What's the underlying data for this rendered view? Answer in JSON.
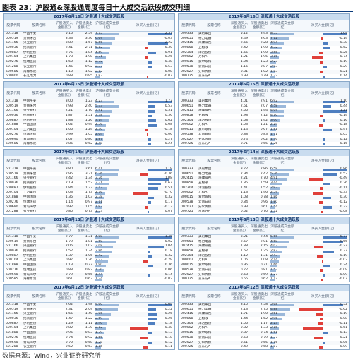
{
  "figure": {
    "title": "图表 23：沪股通&深股通周度每日十大成交活跃股成交明细",
    "source": "数据来源：Wind，兴业证券研究所"
  },
  "headers": {
    "sh": [
      "股票代码",
      "股票名称",
      "沪股通买入金额(亿)",
      "沪股通卖出金额(亿)",
      "沪股通成交金额(亿)",
      "净买入金额(亿)"
    ],
    "sz": [
      "股票代码",
      "股票名称",
      "深股通买入金额(亿)",
      "深股通卖出金额(亿)",
      "深股通成交金额(亿)",
      "净买入金额(亿)"
    ]
  },
  "panels": [
    {
      "title": "2017年6月16日 沪股通十大成交活跃股",
      "rows": [
        [
          "601318",
          "中国平安",
          "5.16",
          "2.59",
          "7.75",
          "2.57"
        ],
        [
          "600519",
          "贵州茅台",
          "3.33",
          "3.36",
          "6.69",
          "-0.03"
        ],
        [
          "601166",
          "兴业银行",
          "3.89",
          "1.67",
          "5.56",
          "2.22"
        ],
        [
          "600036",
          "招商银行",
          "2.41",
          "2.71",
          "5.12",
          "-0.30"
        ],
        [
          "600887",
          "伊利股份",
          "2.75",
          "1.84",
          "4.59",
          "0.91"
        ],
        [
          "600104",
          "上汽集团",
          "1.73",
          "1.98",
          "3.71",
          "-0.25"
        ],
        [
          "600276",
          "恒瑞医药",
          "1.60",
          "1.12",
          "2.72",
          "0.48"
        ],
        [
          "601288",
          "农业银行",
          "1.45",
          "0.92",
          "2.37",
          "0.53"
        ],
        [
          "600585",
          "海螺水泥",
          "1.10",
          "1.02",
          "2.12",
          "0.08"
        ],
        [
          "600900",
          "长江电力",
          "0.88",
          "0.95",
          "1.83",
          "-0.07"
        ]
      ]
    },
    {
      "title": "2017年6月16日 深股通十大成交活跃股",
      "rows": [
        [
          "000333",
          "美的集团",
          "5.12",
          "3.43",
          "8.55",
          "1.69"
        ],
        [
          "000651",
          "格力电器",
          "3.49",
          "3.63",
          "7.12",
          "-0.14"
        ],
        [
          "002415",
          "海康威视",
          "2.66",
          "2.28",
          "4.94",
          "0.38"
        ],
        [
          "000858",
          "五粮液",
          "2.42",
          "1.90",
          "4.32",
          "0.52"
        ],
        [
          "002304",
          "洋河股份",
          "1.65",
          "1.90",
          "3.55",
          "-0.25"
        ],
        [
          "000002",
          "万科A",
          "1.21",
          "1.95",
          "3.16",
          "-0.74"
        ],
        [
          "300015",
          "爱尔眼科",
          "1.04",
          "1.23",
          "2.27",
          "-0.19"
        ],
        [
          "000538",
          "云南白药",
          "1.16",
          "0.87",
          "2.03",
          "0.29"
        ],
        [
          "002027",
          "分众传媒",
          "0.81",
          "1.02",
          "1.83",
          "-0.21"
        ],
        [
          "000725",
          "京东方A",
          "0.93",
          "0.79",
          "1.72",
          "0.14"
        ]
      ]
    },
    {
      "title": "2017年6月15日 沪股通十大成交活跃股",
      "rows": [
        [
          "601318",
          "中国平安",
          "3.00",
          "1.23",
          "4.23",
          "1.77"
        ],
        [
          "600519",
          "贵州茅台",
          "2.93",
          "2.40",
          "5.33",
          "0.53"
        ],
        [
          "601166",
          "兴业银行",
          "2.21",
          "1.70",
          "3.91",
          "0.51"
        ],
        [
          "600036",
          "招商银行",
          "1.87",
          "1.51",
          "3.38",
          "0.36"
        ],
        [
          "600887",
          "伊利股份",
          "1.88",
          "1.26",
          "3.14",
          "0.62"
        ],
        [
          "601888",
          "中国国旅",
          "1.62",
          "0.94",
          "2.56",
          "0.68"
        ],
        [
          "600104",
          "上汽集团",
          "1.06",
          "1.24",
          "2.30",
          "-0.18"
        ],
        [
          "600276",
          "恒瑞医药",
          "0.99",
          "1.05",
          "2.04",
          "-0.06"
        ],
        [
          "600690",
          "青岛海尔",
          "1.07",
          "0.80",
          "1.87",
          "0.27"
        ],
        [
          "600585",
          "海螺水泥",
          "0.86",
          "0.62",
          "1.48",
          "0.24"
        ]
      ]
    },
    {
      "title": "2017年6月15日 深股通十大成交活跃股",
      "rows": [
        [
          "000333",
          "美的集团",
          "4.01",
          "2.91",
          "6.92",
          "1.10"
        ],
        [
          "000651",
          "格力电器",
          "2.51",
          "2.07",
          "4.58",
          "0.44"
        ],
        [
          "002415",
          "海康威视",
          "2.65",
          "1.44",
          "4.09",
          "1.21"
        ],
        [
          "000858",
          "五粮液",
          "1.98",
          "2.12",
          "4.10",
          "-0.14"
        ],
        [
          "002304",
          "洋河股份",
          "1.58",
          "1.42",
          "3.00",
          "0.16"
        ],
        [
          "000002",
          "万科A",
          "1.03",
          "1.21",
          "2.24",
          "-0.18"
        ],
        [
          "300015",
          "爱尔眼科",
          "1.14",
          "0.67",
          "1.81",
          "0.47"
        ],
        [
          "000538",
          "云南白药",
          "0.88",
          "0.83",
          "1.71",
          "0.05"
        ],
        [
          "002027",
          "分众传媒",
          "0.74",
          "0.62",
          "1.36",
          "0.12"
        ],
        [
          "000725",
          "京东方A",
          "0.71",
          "0.55",
          "1.26",
          "0.16"
        ]
      ]
    },
    {
      "title": "2017年6月14日 沪股通十大成交活跃股",
      "rows": [
        [
          "601318",
          "中国平安",
          "3.80",
          "2.61",
          "6.41",
          "1.19"
        ],
        [
          "600519",
          "贵州茅台",
          "2.95",
          "3.31",
          "6.26",
          "-0.36"
        ],
        [
          "601166",
          "兴业银行",
          "2.42",
          "1.34",
          "3.76",
          "1.08"
        ],
        [
          "600036",
          "招商银行",
          "2.19",
          "1.52",
          "3.71",
          "0.67"
        ],
        [
          "600887",
          "伊利股份",
          "1.84",
          "1.33",
          "3.17",
          "0.51"
        ],
        [
          "600104",
          "上汽集团",
          "1.03",
          "1.73",
          "2.76",
          "-0.70"
        ],
        [
          "601888",
          "中国国旅",
          "1.35",
          "1.03",
          "2.38",
          "0.32"
        ],
        [
          "600276",
          "恒瑞医药",
          "1.14",
          "0.97",
          "2.11",
          "0.17"
        ],
        [
          "600690",
          "青岛海尔",
          "0.92",
          "1.05",
          "1.97",
          "-0.13"
        ],
        [
          "601288",
          "农业银行",
          "0.80",
          "0.73",
          "1.53",
          "0.07"
        ]
      ]
    },
    {
      "title": "2017年6月14日 深股通十大成交活跃股",
      "rows": [
        [
          "000333",
          "美的集团",
          "3.72",
          "2.86",
          "6.58",
          "0.86"
        ],
        [
          "000651",
          "格力电器",
          "2.94",
          "2.42",
          "5.36",
          "0.52"
        ],
        [
          "002415",
          "海康威视",
          "2.21",
          "2.70",
          "4.91",
          "-0.49"
        ],
        [
          "000858",
          "五粮液",
          "1.85",
          "1.59",
          "3.44",
          "0.26"
        ],
        [
          "002304",
          "洋河股份",
          "1.41",
          "1.52",
          "2.93",
          "-0.11"
        ],
        [
          "000002",
          "万科A",
          "1.13",
          "1.46",
          "2.59",
          "-0.33"
        ],
        [
          "300015",
          "爱尔眼科",
          "1.08",
          "0.78",
          "1.86",
          "0.30"
        ],
        [
          "000538",
          "云南白药",
          "0.84",
          "0.96",
          "1.80",
          "-0.12"
        ],
        [
          "002027",
          "分众传媒",
          "0.93",
          "0.61",
          "1.54",
          "0.32"
        ],
        [
          "000725",
          "京东方A",
          "0.62",
          "0.70",
          "1.32",
          "-0.08"
        ]
      ]
    },
    {
      "title": "2017年6月13日 沪股通十大成交活跃股",
      "rows": [
        [
          "601318",
          "中国平安",
          "2.77",
          "1.31",
          "4.08",
          "1.46"
        ],
        [
          "600519",
          "贵州茅台",
          "1.79",
          "1.81",
          "3.60",
          "-0.02"
        ],
        [
          "601166",
          "兴业银行",
          "2.06",
          "1.02",
          "3.08",
          "1.04"
        ],
        [
          "600036",
          "招商银行",
          "1.52",
          "1.34",
          "2.86",
          "0.18"
        ],
        [
          "600887",
          "伊利股份",
          "1.37",
          "1.05",
          "2.42",
          "0.32"
        ],
        [
          "600104",
          "上汽集团",
          "0.97",
          "1.26",
          "2.23",
          "-0.29"
        ],
        [
          "601888",
          "中国国旅",
          "1.13",
          "0.77",
          "1.90",
          "0.36"
        ],
        [
          "600276",
          "恒瑞医药",
          "0.88",
          "0.82",
          "1.70",
          "0.06"
        ],
        [
          "600690",
          "青岛海尔",
          "0.79",
          "0.65",
          "1.44",
          "0.14"
        ],
        [
          "600585",
          "海螺水泥",
          "0.61",
          "0.63",
          "1.24",
          "-0.02"
        ]
      ]
    },
    {
      "title": "2017年6月13日 深股通十大成交活跃股",
      "rows": [
        [
          "000333",
          "美的集团",
          "3.21",
          "2.44",
          "5.65",
          "0.77"
        ],
        [
          "000651",
          "格力电器",
          "2.67",
          "2.01",
          "4.68",
          "0.66"
        ],
        [
          "002415",
          "海康威视",
          "1.88",
          "2.15",
          "4.03",
          "-0.27"
        ],
        [
          "000858",
          "五粮液",
          "1.62",
          "1.25",
          "2.87",
          "0.37"
        ],
        [
          "002304",
          "洋河股份",
          "1.12",
          "1.31",
          "2.43",
          "-0.19"
        ],
        [
          "000002",
          "万科A",
          "1.06",
          "1.08",
          "2.14",
          "-0.02"
        ],
        [
          "300015",
          "爱尔眼科",
          "0.95",
          "0.71",
          "1.66",
          "0.24"
        ],
        [
          "000538",
          "云南白药",
          "0.72",
          "0.81",
          "1.53",
          "-0.09"
        ],
        [
          "002027",
          "分众传媒",
          "0.68",
          "0.59",
          "1.27",
          "0.09"
        ],
        [
          "000725",
          "京东方A",
          "0.55",
          "0.62",
          "1.17",
          "-0.07"
        ]
      ]
    },
    {
      "title": "2017年6月12日 沪股通十大成交活跃股",
      "rows": [
        [
          "601318",
          "中国平安",
          "2.62",
          "1.98",
          "4.60",
          "0.64"
        ],
        [
          "600519",
          "贵州茅台",
          "2.31",
          "2.09",
          "4.40",
          "0.22"
        ],
        [
          "601166",
          "兴业银行",
          "1.65",
          "1.40",
          "3.05",
          "0.25"
        ],
        [
          "600036",
          "招商银行",
          "1.47",
          "1.22",
          "2.69",
          "0.25"
        ],
        [
          "600887",
          "伊利股份",
          "1.29",
          "1.11",
          "2.40",
          "0.18"
        ],
        [
          "600104",
          "上汽集团",
          "0.82",
          "1.30",
          "2.12",
          "-0.48"
        ],
        [
          "601888",
          "中国国旅",
          "0.96",
          "0.83",
          "1.79",
          "0.13"
        ],
        [
          "600276",
          "恒瑞医药",
          "0.74",
          "0.92",
          "1.66",
          "-0.18"
        ],
        [
          "600690",
          "青岛海尔",
          "0.70",
          "0.58",
          "1.28",
          "0.12"
        ],
        [
          "601288",
          "农业银行",
          "0.52",
          "0.63",
          "1.15",
          "-0.11"
        ]
      ]
    },
    {
      "title": "2017年6月12日 深股通十大成交活跃股",
      "rows": [
        [
          "000333",
          "美的集团",
          "3.10",
          "2.58",
          "5.68",
          "0.52"
        ],
        [
          "000651",
          "格力电器",
          "2.13",
          "2.75",
          "4.88",
          "-0.62"
        ],
        [
          "002415",
          "海康威视",
          "1.71",
          "1.90",
          "3.61",
          "-0.19"
        ],
        [
          "000858",
          "五粮液",
          "1.44",
          "1.52",
          "2.96",
          "-0.08"
        ],
        [
          "002304",
          "洋河股份",
          "1.06",
          "1.17",
          "2.23",
          "-0.11"
        ],
        [
          "000002",
          "万科A",
          "0.82",
          "1.33",
          "2.15",
          "-0.51"
        ],
        [
          "300015",
          "爱尔眼科",
          "0.87",
          "0.74",
          "1.61",
          "0.13"
        ],
        [
          "000538",
          "云南白药",
          "0.58",
          "0.79",
          "1.37",
          "-0.21"
        ],
        [
          "002027",
          "分众传媒",
          "0.61",
          "0.55",
          "1.16",
          "0.06"
        ],
        [
          "000725",
          "京东方A",
          "0.49",
          "0.58",
          "1.07",
          "-0.09"
        ]
      ]
    }
  ]
}
